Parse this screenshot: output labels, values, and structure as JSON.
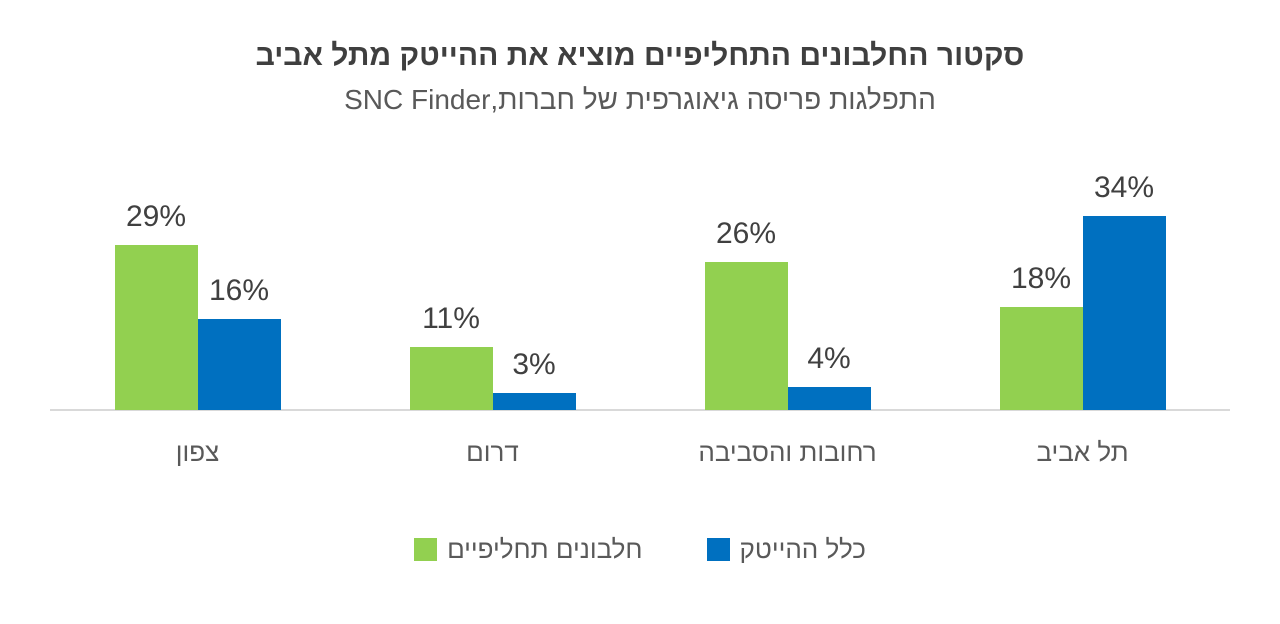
{
  "chart_data": {
    "type": "bar",
    "title": "סקטור החלבונים התחליפיים מוציא את ההייטק מתל אביב",
    "subtitle": "התפלגות פריסה גיאוגרפית של חברות,SNC Finder",
    "categories": [
      "צפון",
      "דרום",
      "רחובות והסביבה",
      "תל אביב"
    ],
    "series": [
      {
        "name": "חלבונים תחליפיים",
        "color": "#92D050",
        "values": [
          29,
          11,
          26,
          18
        ]
      },
      {
        "name": "כלל ההייטק",
        "color": "#0070C0",
        "values": [
          16,
          3,
          4,
          34
        ]
      }
    ],
    "value_suffix": "%",
    "xlabel": "",
    "ylabel": "",
    "ylim": [
      0,
      40
    ],
    "grid": false,
    "legend_position": "bottom",
    "direction": "rtl",
    "colors": {
      "title": "#3F3F3F",
      "subtitle": "#595959",
      "value_label": "#404040",
      "category_label": "#595959",
      "legend_label": "#595959",
      "axis_line": "#D9D9D9",
      "background": "#FFFFFF"
    }
  }
}
